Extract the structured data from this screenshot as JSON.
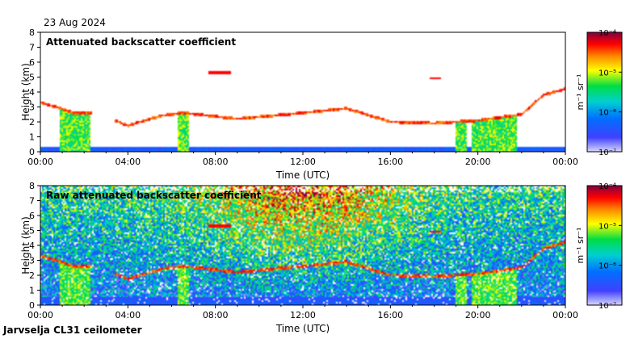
{
  "date_label": "23 Aug 2024",
  "footer_label": "Jarvselja CL31 ceilometer",
  "chart_data": [
    {
      "type": "heatmap",
      "title": "Attenuated backscatter coefficient",
      "xlabel": "Time (UTC)",
      "ylabel": "Height (km)",
      "x_ticks": [
        "00:00",
        "04:00",
        "08:00",
        "12:00",
        "16:00",
        "20:00",
        "00:00"
      ],
      "y_ticks": [
        "0",
        "1",
        "2",
        "3",
        "4",
        "5",
        "6",
        "7",
        "8"
      ],
      "xlim_hours": [
        0,
        24
      ],
      "ylim_km": [
        0,
        8
      ],
      "colorbar": {
        "scale": "log",
        "range": [
          1e-07,
          0.0001
        ],
        "tick_labels": [
          "10⁻⁴",
          "10⁻⁵",
          "10⁻⁶",
          "10⁻⁷"
        ],
        "unit": "m⁻¹ sr⁻¹",
        "colormap": [
          "#8080ff",
          "#0000ff",
          "#00aaff",
          "#00dd66",
          "#ffff00",
          "#ff8800",
          "#ff0000",
          "#aa0066"
        ]
      },
      "features": {
        "boundary_layer_top_km": [
          [
            0,
            3.3
          ],
          [
            0.7,
            3.0
          ],
          [
            1.5,
            2.6
          ],
          [
            2.5,
            2.6
          ],
          [
            4,
            1.75
          ],
          [
            5.5,
            2.4
          ],
          [
            6.5,
            2.6
          ],
          [
            9,
            2.2
          ],
          [
            12,
            2.6
          ],
          [
            14,
            2.9
          ],
          [
            16,
            2.0
          ],
          [
            18,
            1.9
          ],
          [
            20,
            2.1
          ],
          [
            22,
            2.5
          ],
          [
            23,
            3.8
          ],
          [
            24,
            4.2
          ]
        ],
        "elevated_layers": [
          {
            "t_start_h": 7.7,
            "t_end_h": 8.7,
            "height_km": 5.3
          },
          {
            "t_start_h": 17.8,
            "t_end_h": 18.3,
            "height_km": 4.9
          }
        ],
        "precipitation_columns_h": [
          [
            0.9,
            2.3
          ],
          [
            6.3,
            6.8
          ],
          [
            19.0,
            19.5
          ],
          [
            19.7,
            21.8
          ]
        ]
      }
    },
    {
      "type": "heatmap",
      "title": "Raw attenuated backscatter coefficient",
      "xlabel": "Time (UTC)",
      "ylabel": "Height (km)",
      "x_ticks": [
        "00:00",
        "04:00",
        "08:00",
        "12:00",
        "16:00",
        "20:00",
        "00:00"
      ],
      "y_ticks": [
        "0",
        "1",
        "2",
        "3",
        "4",
        "5",
        "6",
        "7",
        "8"
      ],
      "xlim_hours": [
        0,
        24
      ],
      "ylim_km": [
        0,
        8
      ],
      "colorbar": {
        "scale": "log",
        "range": [
          1e-07,
          0.0001
        ],
        "tick_labels": [
          "10⁻⁴",
          "10⁻⁵",
          "10⁻⁶",
          "10⁻⁷"
        ],
        "unit": "m⁻¹ sr⁻¹",
        "colormap": [
          "#8080ff",
          "#0000ff",
          "#00aaff",
          "#00dd66",
          "#ffff00",
          "#ff8800",
          "#ff0000",
          "#aa0066"
        ]
      },
      "features": {
        "noise_level": "high aloft",
        "daytime_noise_peak_h": [
          8,
          16
        ]
      }
    }
  ]
}
